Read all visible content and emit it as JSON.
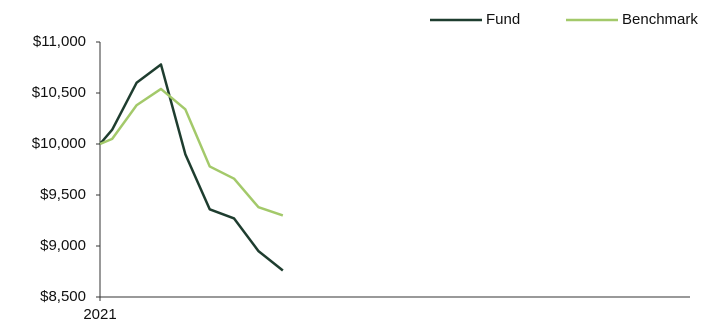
{
  "chart_data": {
    "type": "line",
    "x": [
      0,
      0.5,
      1.5,
      2.5,
      3.5,
      4.5,
      5.5,
      6.5,
      7.5
    ],
    "series": [
      {
        "name": "Fund",
        "color": "#1e3d2f",
        "values": [
          10000,
          10140,
          10600,
          10780,
          9900,
          9360,
          9270,
          8950,
          8760
        ]
      },
      {
        "name": "Benchmark",
        "color": "#a3c96a",
        "values": [
          10000,
          10050,
          10380,
          10540,
          10340,
          9780,
          9660,
          9380,
          9300
        ]
      }
    ],
    "xlim": [
      0,
      24.2
    ],
    "xticks": [
      {
        "value": 0,
        "label": "2021"
      }
    ],
    "ylim": [
      8500,
      11000
    ],
    "yticks": [
      {
        "value": 8500,
        "label": "$8,500"
      },
      {
        "value": 9000,
        "label": "$9,000"
      },
      {
        "value": 9500,
        "label": "$9,500"
      },
      {
        "value": 10000,
        "label": "$10,000"
      },
      {
        "value": 10500,
        "label": "$10,500"
      },
      {
        "value": 11000,
        "label": "$11,000"
      }
    ],
    "grid": false,
    "legend": "top-right"
  }
}
